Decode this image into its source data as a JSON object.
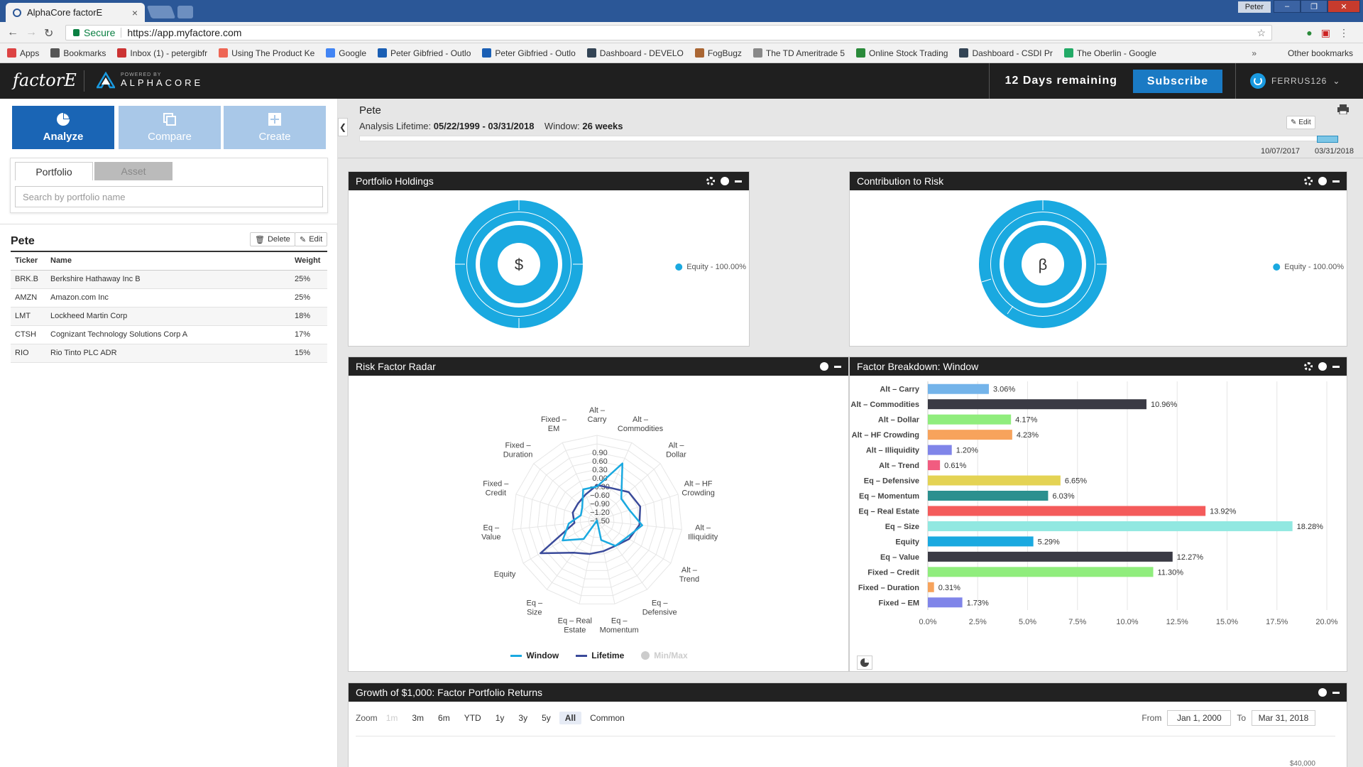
{
  "browser": {
    "tab_title": "AlphaCore factorE",
    "user_badge": "Peter",
    "secure_label": "Secure",
    "url": "https://app.myfactore.com",
    "bookmarks": [
      {
        "label": "Apps",
        "color": "#d44"
      },
      {
        "label": "Bookmarks",
        "color": "#555"
      },
      {
        "label": "Inbox (1) - petergibfr",
        "color": "#c33"
      },
      {
        "label": "Using The Product Ke",
        "color": "#e65"
      },
      {
        "label": "Google",
        "color": "#4285f4"
      },
      {
        "label": "Peter Gibfried - Outlo",
        "color": "#1a5fb4"
      },
      {
        "label": "Peter Gibfried - Outlo",
        "color": "#1a5fb4"
      },
      {
        "label": "Dashboard - DEVELO",
        "color": "#345"
      },
      {
        "label": "FogBugz",
        "color": "#a63"
      },
      {
        "label": "The TD Ameritrade 5",
        "color": "#888"
      },
      {
        "label": "Online Stock Trading",
        "color": "#2a8a3a"
      },
      {
        "label": "Dashboard - CSDI Pr",
        "color": "#345"
      },
      {
        "label": "The Oberlin - Google",
        "color": "#2a6"
      }
    ],
    "other_bookmarks": "Other bookmarks"
  },
  "header": {
    "logo": "factorE",
    "powered_by": "POWERED BY",
    "brand": "ALPHACORE",
    "trial": "12 Days remaining",
    "subscribe": "Subscribe",
    "user": "FERRUS126"
  },
  "left": {
    "modes": {
      "analyze": "Analyze",
      "compare": "Compare",
      "create": "Create"
    },
    "tabs": {
      "portfolio": "Portfolio",
      "asset": "Asset"
    },
    "search_placeholder": "Search by portfolio name",
    "portfolio_name": "Pete",
    "delete": "Delete",
    "edit": "Edit",
    "columns": [
      "Ticker",
      "Name",
      "Weight"
    ],
    "holdings": [
      {
        "ticker": "BRK.B",
        "name": "Berkshire Hathaway Inc B",
        "weight": "25%"
      },
      {
        "ticker": "AMZN",
        "name": "Amazon.com Inc",
        "weight": "25%"
      },
      {
        "ticker": "LMT",
        "name": "Lockheed Martin Corp",
        "weight": "18%"
      },
      {
        "ticker": "CTSH",
        "name": "Cognizant Technology Solutions Corp A",
        "weight": "17%"
      },
      {
        "ticker": "RIO",
        "name": "Rio Tinto PLC ADR",
        "weight": "15%"
      }
    ]
  },
  "info": {
    "title": "Pete",
    "lifetime_label": "Analysis Lifetime:",
    "lifetime_value": "05/22/1999 - 03/31/2018",
    "window_label": "Window:",
    "window_value": "26 weeks",
    "edit": "Edit",
    "window_start": "10/07/2017",
    "window_end": "03/31/2018"
  },
  "panels": {
    "holdings": {
      "title": "Portfolio Holdings",
      "center": "$",
      "legend": "Equity - 100.00%",
      "color": "#1aa9e0"
    },
    "risk": {
      "title": "Contribution to Risk",
      "center": "β",
      "legend": "Equity - 100.00%",
      "color": "#1aa9e0"
    },
    "radar": {
      "title": "Risk Factor Radar"
    },
    "breakdown": {
      "title": "Factor Breakdown: Window"
    },
    "growth": {
      "title": "Growth of $1,000: Factor Portfolio Returns"
    }
  },
  "radar": {
    "axes": [
      "Alt –\nCarry",
      "Alt –\nCommodities",
      "Alt –\nDollar",
      "Alt – HF\nCrowding",
      "Alt –\nIlliquidity",
      "Alt –\nTrend",
      "Eq –\nDefensive",
      "Eq –\nMomentum",
      "Eq – Real\nEstate",
      "Eq –\nSize",
      "Equity",
      "Eq –\nValue",
      "Fixed –\nCredit",
      "Fixed –\nDuration",
      "Fixed –\nEM"
    ],
    "ticks": [
      "0.90",
      "0.60",
      "0.30",
      "0.00",
      "−0.30",
      "−0.60",
      "−0.90",
      "−1.20",
      "−1.50"
    ],
    "rmin": -1.5,
    "rmax": 1.5,
    "window": [
      -0.3,
      0.7,
      -0.35,
      -0.3,
      0.1,
      -0.3,
      -0.4,
      -0.8,
      -1.5,
      -0.7,
      -0.1,
      -0.5,
      -0.9,
      -0.8,
      -0.3
    ],
    "lifetime": [
      -0.25,
      -0.25,
      0.0,
      0.1,
      0.0,
      -0.2,
      -0.4,
      -0.4,
      -0.3,
      -0.1,
      0.8,
      -0.7,
      -0.6,
      -0.6,
      -0.5
    ],
    "minmax": [
      0.9,
      0.9,
      0.9,
      0.9,
      0.9,
      0.9,
      0.9,
      0.9,
      0.9,
      0.9,
      0.9,
      0.9,
      0.9,
      0.9,
      0.9
    ],
    "legend": [
      {
        "label": "Window",
        "color": "#1aa9e0"
      },
      {
        "label": "Lifetime",
        "color": "#3a4a9a"
      },
      {
        "label": "Min/Max",
        "color": "#cccccc"
      }
    ]
  },
  "chart_data": {
    "type": "bar",
    "categories": [
      "Alt – Carry",
      "Alt – Commodities",
      "Alt – Dollar",
      "Alt – HF Crowding",
      "Alt – Illiquidity",
      "Alt – Trend",
      "Eq – Defensive",
      "Eq – Momentum",
      "Eq – Real Estate",
      "Eq – Size",
      "Equity",
      "Eq – Value",
      "Fixed – Credit",
      "Fixed – Duration",
      "Fixed – EM"
    ],
    "values": [
      3.06,
      10.96,
      4.17,
      4.23,
      1.2,
      0.61,
      6.65,
      6.03,
      13.92,
      18.28,
      5.29,
      12.27,
      11.3,
      0.31,
      1.73
    ],
    "value_labels": [
      "3.06%",
      "10.96%",
      "4.17%",
      "4.23%",
      "1.20%",
      "0.61%",
      "6.65%",
      "6.03%",
      "13.92%",
      "18.28%",
      "5.29%",
      "12.27%",
      "11.30%",
      "0.31%",
      "1.73%"
    ],
    "colors": [
      "#74b4ea",
      "#3a3a44",
      "#90ed7d",
      "#f7a35c",
      "#8085e9",
      "#f15c80",
      "#e4d354",
      "#2b908f",
      "#f45b5b",
      "#91e8e1",
      "#1aa9e0",
      "#3a3a44",
      "#90ed7d",
      "#f7a35c",
      "#8085e9"
    ],
    "xticks": [
      "0.0%",
      "2.5%",
      "5.0%",
      "7.5%",
      "10.0%",
      "12.5%",
      "15.0%",
      "17.5%",
      "20.0%"
    ],
    "xlim": [
      0,
      20
    ],
    "title": "Factor Breakdown: Window"
  },
  "growth": {
    "zoom_label": "Zoom",
    "zoom": [
      {
        "label": "1m",
        "state": "dis"
      },
      {
        "label": "3m",
        "state": ""
      },
      {
        "label": "6m",
        "state": ""
      },
      {
        "label": "YTD",
        "state": ""
      },
      {
        "label": "1y",
        "state": ""
      },
      {
        "label": "3y",
        "state": ""
      },
      {
        "label": "5y",
        "state": ""
      },
      {
        "label": "All",
        "state": "active"
      },
      {
        "label": "Common",
        "state": ""
      }
    ],
    "from_label": "From",
    "from": "Jan 1, 2000",
    "to_label": "To",
    "to": "Mar 31, 2018",
    "y_top": "$40,000"
  }
}
